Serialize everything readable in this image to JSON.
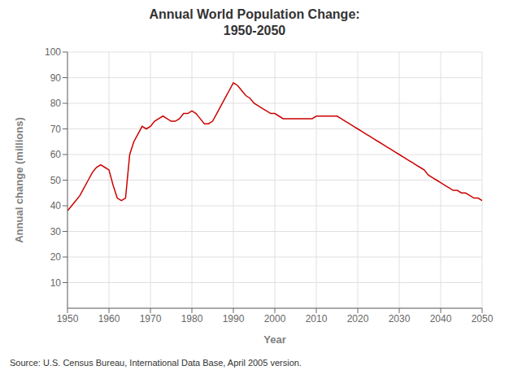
{
  "chart_data": {
    "type": "line",
    "title": "Annual World Population Change:\n1950-2050",
    "x_label": "Year",
    "y_label": "Annual change (millions)",
    "annotations": [
      "Source: U.S. Census Bureau, International Data Base, April 2005 version."
    ],
    "color": "#cc0000",
    "grid": true,
    "xlim": [
      1950,
      2050
    ],
    "ylim": [
      0,
      100
    ],
    "xticks": [
      1950,
      1960,
      1970,
      1980,
      1990,
      2000,
      2010,
      2020,
      2030,
      2040,
      2050
    ],
    "yticks": [
      10,
      20,
      30,
      40,
      50,
      60,
      70,
      80,
      90,
      100
    ],
    "x": [
      1950,
      1951,
      1952,
      1953,
      1954,
      1955,
      1956,
      1957,
      1958,
      1959,
      1960,
      1961,
      1962,
      1963,
      1964,
      1965,
      1966,
      1967,
      1968,
      1969,
      1970,
      1971,
      1972,
      1973,
      1974,
      1975,
      1976,
      1977,
      1978,
      1979,
      1980,
      1981,
      1982,
      1983,
      1984,
      1985,
      1986,
      1987,
      1988,
      1989,
      1990,
      1991,
      1992,
      1993,
      1994,
      1995,
      1996,
      1997,
      1998,
      1999,
      2000,
      2001,
      2002,
      2003,
      2004,
      2005,
      2006,
      2007,
      2008,
      2009,
      2010,
      2011,
      2012,
      2013,
      2014,
      2015,
      2016,
      2017,
      2018,
      2019,
      2020,
      2021,
      2022,
      2023,
      2024,
      2025,
      2026,
      2027,
      2028,
      2029,
      2030,
      2031,
      2032,
      2033,
      2034,
      2035,
      2036,
      2037,
      2038,
      2039,
      2040,
      2041,
      2042,
      2043,
      2044,
      2045,
      2046,
      2047,
      2048,
      2049,
      2050
    ],
    "values": [
      38,
      40,
      42,
      44,
      47,
      50,
      53,
      55,
      56,
      55,
      54,
      48,
      43,
      42,
      43,
      60,
      65,
      68,
      71,
      70,
      71,
      73,
      74,
      75,
      74,
      73,
      73,
      74,
      76,
      76,
      77,
      76,
      74,
      72,
      72,
      73,
      76,
      79,
      82,
      85,
      88,
      87,
      85,
      83,
      82,
      80,
      79,
      78,
      77,
      76,
      76,
      75,
      74,
      74,
      74,
      74,
      74,
      74,
      74,
      74,
      75,
      75,
      75,
      75,
      75,
      75,
      74,
      73,
      72,
      71,
      70,
      69,
      68,
      67,
      66,
      65,
      64,
      63,
      62,
      61,
      60,
      59,
      58,
      57,
      56,
      55,
      54,
      52,
      51,
      50,
      49,
      48,
      47,
      46,
      46,
      45,
      45,
      44,
      43,
      43,
      42
    ]
  }
}
